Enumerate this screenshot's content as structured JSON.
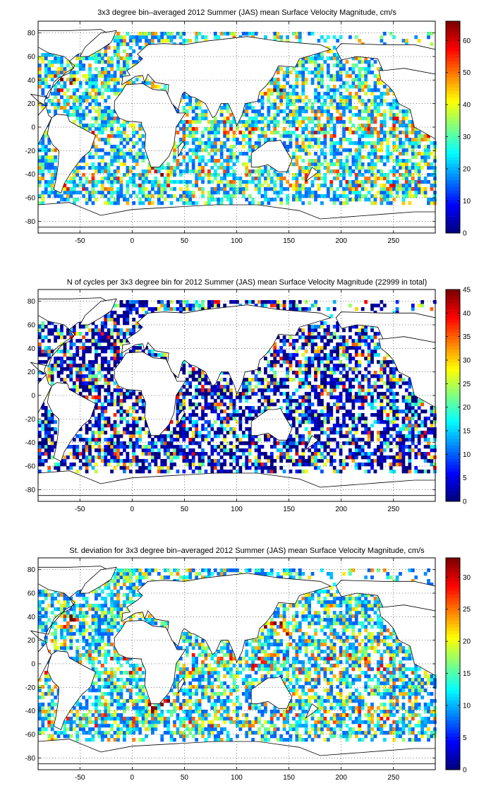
{
  "chart_data": [
    {
      "type": "heatmap",
      "title": "3x3 degree bin–averaged 2012 Summer (JAS) mean Surface Velocity Magnitude, cm/s",
      "xlim": [
        -90,
        290
      ],
      "ylim": [
        -90,
        90
      ],
      "xticks": [
        "-50",
        "0",
        "50",
        "100",
        "150",
        "200",
        "250"
      ],
      "yticks": [
        "80",
        "60",
        "40",
        "20",
        "0",
        "-20",
        "-40",
        "-60",
        "-80"
      ],
      "grid": "dotted",
      "colorbar": {
        "ticks": [
          "0",
          "10",
          "20",
          "30",
          "40",
          "50",
          "60"
        ],
        "range": [
          0,
          66
        ]
      },
      "colormap": "jet",
      "bin_size_deg": 3
    },
    {
      "type": "heatmap",
      "title": "N of cycles per 3x3 degree bin for 2012 Summer (JAS) mean Surface Velocity Magnitude (22999 in total)",
      "xlim": [
        -90,
        290
      ],
      "ylim": [
        -90,
        90
      ],
      "xticks": [
        "-50",
        "0",
        "50",
        "100",
        "150",
        "200",
        "250"
      ],
      "yticks": [
        "80",
        "60",
        "40",
        "20",
        "0",
        "-20",
        "-40",
        "-60",
        "-80"
      ],
      "grid": "dotted",
      "colorbar": {
        "ticks": [
          "0",
          "5",
          "10",
          "15",
          "20",
          "25",
          "30",
          "35",
          "40",
          "45"
        ],
        "range": [
          0,
          45
        ]
      },
      "colormap": "jet",
      "bin_size_deg": 3
    },
    {
      "type": "heatmap",
      "title": "St. deviation for 3x3 degree bin–averaged 2012 Summer (JAS) mean Surface Velocity Magnitude, cm/s",
      "xlim": [
        -90,
        290
      ],
      "ylim": [
        -90,
        90
      ],
      "xticks": [
        "-50",
        "0",
        "50",
        "100",
        "150",
        "200",
        "250"
      ],
      "yticks": [
        "80",
        "60",
        "40",
        "20",
        "0",
        "-20",
        "-40",
        "-60",
        "-80"
      ],
      "grid": "dotted",
      "colorbar": {
        "ticks": [
          "0",
          "5",
          "10",
          "15",
          "20",
          "25",
          "30"
        ],
        "range": [
          0,
          33
        ]
      },
      "colormap": "jet",
      "bin_size_deg": 3
    }
  ]
}
